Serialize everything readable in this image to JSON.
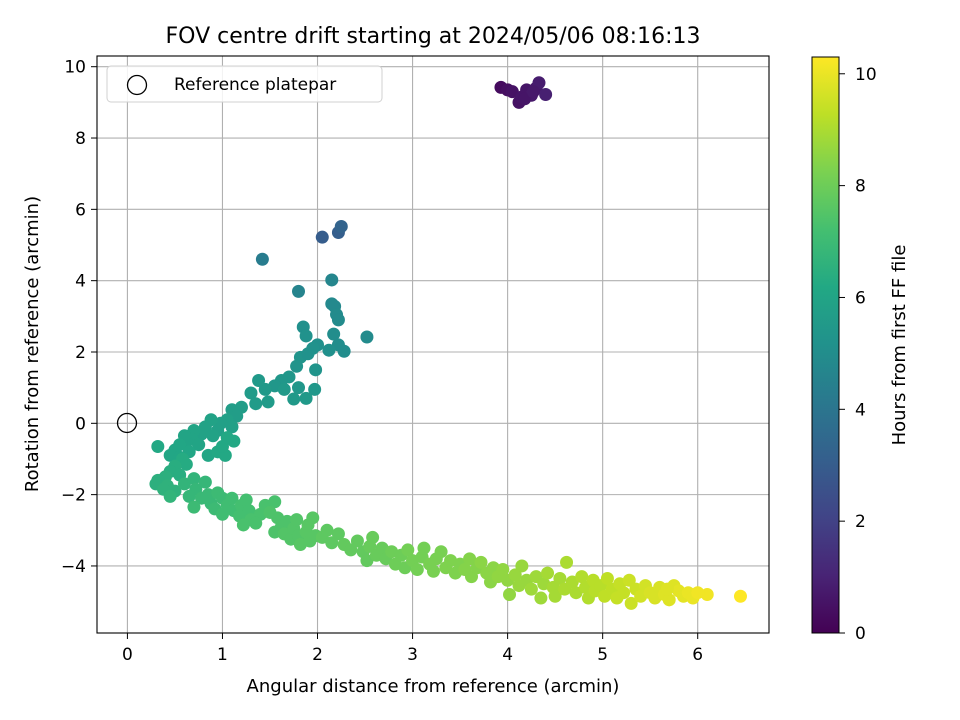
{
  "chart_data": {
    "type": "scatter",
    "title": "FOV centre drift starting at 2024/05/06 08:16:13",
    "xlabel": "Angular distance from reference (arcmin)",
    "ylabel": "Rotation from reference (arcmin)",
    "xlim": [
      -0.32,
      6.75
    ],
    "ylim": [
      -5.88,
      10.3
    ],
    "xticks": [
      0,
      1,
      2,
      3,
      4,
      5,
      6
    ],
    "yticks": [
      -4,
      -2,
      0,
      2,
      4,
      6,
      8,
      10
    ],
    "grid": true,
    "legend": {
      "placement": "top-left",
      "entries": [
        "Reference platepar"
      ]
    },
    "reference_point": {
      "x": 0,
      "y": 0,
      "label": "Reference platepar"
    },
    "colorbar": {
      "label": "Hours from first FF file",
      "colormap": "viridis",
      "range": [
        0,
        10.3
      ],
      "ticks": [
        0,
        2,
        4,
        6,
        8,
        10
      ]
    },
    "points": [
      [
        3.93,
        9.42,
        0.3
      ],
      [
        4.0,
        9.35,
        0.4
      ],
      [
        4.05,
        9.3,
        0.5
      ],
      [
        4.12,
        9.0,
        0.5
      ],
      [
        4.15,
        9.15,
        0.6
      ],
      [
        4.2,
        9.35,
        0.6
      ],
      [
        4.25,
        9.2,
        0.7
      ],
      [
        4.3,
        9.4,
        0.7
      ],
      [
        4.33,
        9.55,
        0.8
      ],
      [
        4.4,
        9.22,
        0.9
      ],
      [
        4.18,
        9.1,
        0.6
      ],
      [
        4.27,
        9.3,
        0.7
      ],
      [
        2.05,
        5.22,
        3.0
      ],
      [
        2.22,
        5.35,
        3.1
      ],
      [
        2.25,
        5.52,
        3.3
      ],
      [
        1.42,
        4.6,
        4.3
      ],
      [
        1.8,
        3.7,
        4.6
      ],
      [
        2.15,
        4.02,
        4.7
      ],
      [
        2.15,
        3.35,
        4.8
      ],
      [
        2.18,
        3.28,
        4.8
      ],
      [
        2.2,
        3.05,
        4.9
      ],
      [
        2.22,
        2.9,
        4.9
      ],
      [
        2.17,
        2.5,
        5.0
      ],
      [
        2.52,
        2.42,
        4.9
      ],
      [
        2.28,
        2.02,
        5.0
      ],
      [
        2.22,
        2.2,
        5.0
      ],
      [
        2.12,
        2.05,
        5.1
      ],
      [
        2.0,
        2.2,
        5.1
      ],
      [
        1.85,
        2.7,
        5.1
      ],
      [
        1.88,
        2.45,
        5.2
      ],
      [
        1.95,
        2.1,
        5.2
      ],
      [
        1.82,
        1.85,
        5.3
      ],
      [
        1.78,
        1.6,
        5.3
      ],
      [
        1.9,
        1.95,
        5.2
      ],
      [
        1.98,
        1.5,
        5.3
      ],
      [
        1.7,
        1.3,
        5.4
      ],
      [
        1.62,
        1.2,
        5.4
      ],
      [
        1.55,
        1.05,
        5.4
      ],
      [
        1.65,
        0.95,
        5.5
      ],
      [
        1.8,
        1.0,
        5.4
      ],
      [
        1.97,
        0.95,
        5.4
      ],
      [
        1.88,
        0.7,
        5.5
      ],
      [
        1.75,
        0.68,
        5.5
      ],
      [
        1.45,
        0.95,
        5.5
      ],
      [
        1.38,
        1.2,
        5.5
      ],
      [
        1.3,
        0.85,
        5.6
      ],
      [
        1.48,
        0.6,
        5.6
      ],
      [
        1.35,
        0.55,
        5.6
      ],
      [
        1.2,
        0.45,
        5.7
      ],
      [
        1.1,
        0.38,
        5.7
      ],
      [
        1.15,
        0.2,
        5.7
      ],
      [
        1.05,
        0.1,
        5.8
      ],
      [
        0.98,
        0.0,
        5.8
      ],
      [
        1.1,
        -0.1,
        5.8
      ],
      [
        0.95,
        -0.2,
        5.8
      ],
      [
        0.88,
        0.1,
        5.9
      ],
      [
        0.82,
        -0.1,
        5.9
      ],
      [
        0.9,
        -0.35,
        5.9
      ],
      [
        0.78,
        -0.3,
        5.9
      ],
      [
        0.7,
        -0.2,
        6.0
      ],
      [
        0.68,
        -0.45,
        6.0
      ],
      [
        0.75,
        -0.6,
        6.0
      ],
      [
        0.62,
        -0.5,
        6.0
      ],
      [
        0.6,
        -0.35,
        6.0
      ],
      [
        0.55,
        -0.6,
        6.1
      ],
      [
        0.5,
        -0.75,
        6.1
      ],
      [
        0.45,
        -0.9,
        6.1
      ],
      [
        0.55,
        -0.95,
        6.1
      ],
      [
        0.65,
        -0.8,
        6.1
      ],
      [
        0.85,
        -0.9,
        6.1
      ],
      [
        0.95,
        -0.8,
        6.2
      ],
      [
        1.03,
        -0.9,
        6.2
      ],
      [
        1.0,
        -0.65,
        6.2
      ],
      [
        1.12,
        -0.5,
        6.2
      ],
      [
        1.05,
        -0.4,
        6.2
      ],
      [
        0.32,
        -0.65,
        6.2
      ],
      [
        0.58,
        -1.0,
        6.3
      ],
      [
        0.62,
        -1.15,
        6.3
      ],
      [
        0.5,
        -1.2,
        6.4
      ],
      [
        0.45,
        -1.35,
        6.4
      ],
      [
        0.55,
        -1.45,
        6.4
      ],
      [
        0.4,
        -1.5,
        6.5
      ],
      [
        0.32,
        -1.6,
        6.5
      ],
      [
        0.3,
        -1.7,
        6.5
      ],
      [
        0.42,
        -1.75,
        6.6
      ],
      [
        0.38,
        -1.85,
        6.6
      ],
      [
        0.5,
        -1.9,
        6.6
      ],
      [
        0.45,
        -2.05,
        6.7
      ],
      [
        0.6,
        -1.7,
        6.7
      ],
      [
        0.7,
        -1.55,
        6.7
      ],
      [
        0.72,
        -1.85,
        6.8
      ],
      [
        0.65,
        -2.05,
        6.8
      ],
      [
        0.82,
        -1.65,
        6.8
      ],
      [
        0.85,
        -2.0,
        6.9
      ],
      [
        0.88,
        -2.25,
        6.9
      ],
      [
        0.78,
        -2.1,
        6.9
      ],
      [
        0.7,
        -2.35,
        7.0
      ],
      [
        0.95,
        -1.95,
        7.0
      ],
      [
        0.92,
        -2.4,
        7.0
      ],
      [
        1.0,
        -2.1,
        7.0
      ],
      [
        1.05,
        -2.3,
        7.1
      ],
      [
        1.1,
        -2.1,
        7.1
      ],
      [
        1.0,
        -2.55,
        7.1
      ],
      [
        1.12,
        -2.45,
        7.1
      ],
      [
        1.2,
        -2.3,
        7.2
      ],
      [
        1.18,
        -2.6,
        7.2
      ],
      [
        1.25,
        -2.15,
        7.2
      ],
      [
        1.28,
        -2.45,
        7.2
      ],
      [
        1.3,
        -2.7,
        7.3
      ],
      [
        1.22,
        -2.85,
        7.3
      ],
      [
        1.4,
        -2.55,
        7.3
      ],
      [
        1.35,
        -2.8,
        7.3
      ],
      [
        1.45,
        -2.3,
        7.3
      ],
      [
        1.55,
        -2.2,
        7.3
      ],
      [
        1.5,
        -2.5,
        7.4
      ],
      [
        1.58,
        -2.65,
        7.4
      ],
      [
        1.62,
        -2.9,
        7.4
      ],
      [
        1.68,
        -2.75,
        7.4
      ],
      [
        1.55,
        -3.05,
        7.4
      ],
      [
        1.65,
        -3.1,
        7.5
      ],
      [
        1.72,
        -3.25,
        7.5
      ],
      [
        1.75,
        -2.95,
        7.5
      ],
      [
        1.8,
        -3.15,
        7.5
      ],
      [
        1.82,
        -3.4,
        7.6
      ],
      [
        1.78,
        -2.7,
        7.5
      ],
      [
        1.88,
        -3.05,
        7.6
      ],
      [
        1.92,
        -3.3,
        7.6
      ],
      [
        1.9,
        -2.85,
        7.6
      ],
      [
        1.98,
        -3.15,
        7.6
      ],
      [
        1.95,
        -2.65,
        7.6
      ],
      [
        2.05,
        -3.2,
        7.7
      ],
      [
        2.1,
        -3.0,
        7.7
      ],
      [
        2.15,
        -3.35,
        7.7
      ],
      [
        2.22,
        -3.1,
        7.7
      ],
      [
        2.28,
        -3.4,
        7.8
      ],
      [
        2.35,
        -3.55,
        7.8
      ],
      [
        2.42,
        -3.3,
        7.8
      ],
      [
        2.48,
        -3.6,
        7.8
      ],
      [
        2.52,
        -3.85,
        7.8
      ],
      [
        2.55,
        -3.45,
        7.9
      ],
      [
        2.62,
        -3.7,
        7.9
      ],
      [
        2.58,
        -3.2,
        7.9
      ],
      [
        2.68,
        -3.5,
        7.9
      ],
      [
        2.72,
        -3.8,
        7.9
      ],
      [
        2.78,
        -3.6,
        8.0
      ],
      [
        2.82,
        -3.95,
        8.0
      ],
      [
        2.88,
        -3.7,
        8.0
      ],
      [
        2.92,
        -4.05,
        8.0
      ],
      [
        2.95,
        -3.55,
        8.1
      ],
      [
        3.0,
        -3.85,
        8.1
      ],
      [
        3.05,
        -4.1,
        8.1
      ],
      [
        3.1,
        -3.75,
        8.1
      ],
      [
        3.12,
        -3.5,
        8.1
      ],
      [
        3.18,
        -3.95,
        8.2
      ],
      [
        3.22,
        -4.15,
        8.2
      ],
      [
        3.25,
        -3.8,
        8.2
      ],
      [
        3.3,
        -3.6,
        8.2
      ],
      [
        3.35,
        -4.05,
        8.3
      ],
      [
        3.4,
        -3.85,
        8.3
      ],
      [
        3.45,
        -4.2,
        8.3
      ],
      [
        3.5,
        -3.95,
        8.3
      ],
      [
        3.55,
        -4.1,
        8.4
      ],
      [
        3.6,
        -3.8,
        8.4
      ],
      [
        3.62,
        -4.3,
        8.4
      ],
      [
        3.68,
        -4.05,
        8.4
      ],
      [
        3.72,
        -3.9,
        8.5
      ],
      [
        3.78,
        -4.2,
        8.5
      ],
      [
        3.82,
        -4.45,
        8.5
      ],
      [
        3.85,
        -4.05,
        8.5
      ],
      [
        3.9,
        -4.3,
        8.6
      ],
      [
        3.95,
        -4.1,
        8.6
      ],
      [
        4.0,
        -4.4,
        8.6
      ],
      [
        4.02,
        -4.8,
        8.6
      ],
      [
        4.08,
        -4.25,
        8.7
      ],
      [
        4.12,
        -4.55,
        8.7
      ],
      [
        4.15,
        -4.0,
        8.7
      ],
      [
        4.2,
        -4.4,
        8.7
      ],
      [
        4.25,
        -4.65,
        8.8
      ],
      [
        4.3,
        -4.3,
        8.8
      ],
      [
        4.35,
        -4.9,
        8.8
      ],
      [
        4.38,
        -4.5,
        8.8
      ],
      [
        4.42,
        -4.2,
        8.9
      ],
      [
        4.48,
        -4.6,
        8.9
      ],
      [
        4.5,
        -4.85,
        8.9
      ],
      [
        4.55,
        -4.35,
        8.9
      ],
      [
        4.6,
        -4.65,
        9.0
      ],
      [
        4.62,
        -3.9,
        9.0
      ],
      [
        4.68,
        -4.45,
        9.0
      ],
      [
        4.72,
        -4.75,
        9.0
      ],
      [
        4.78,
        -4.3,
        9.1
      ],
      [
        4.82,
        -4.6,
        9.1
      ],
      [
        4.85,
        -4.9,
        9.1
      ],
      [
        4.9,
        -4.4,
        9.2
      ],
      [
        4.92,
        -4.7,
        9.2
      ],
      [
        4.98,
        -4.55,
        9.2
      ],
      [
        5.02,
        -4.85,
        9.3
      ],
      [
        5.05,
        -4.35,
        9.3
      ],
      [
        5.1,
        -4.65,
        9.3
      ],
      [
        5.15,
        -4.9,
        9.4
      ],
      [
        5.18,
        -4.5,
        9.4
      ],
      [
        5.22,
        -4.75,
        9.4
      ],
      [
        5.28,
        -4.4,
        9.5
      ],
      [
        5.3,
        -5.05,
        9.5
      ],
      [
        5.35,
        -4.65,
        9.5
      ],
      [
        5.4,
        -4.85,
        9.6
      ],
      [
        5.45,
        -4.55,
        9.6
      ],
      [
        5.5,
        -4.75,
        9.7
      ],
      [
        5.55,
        -4.9,
        9.7
      ],
      [
        5.6,
        -4.6,
        9.7
      ],
      [
        5.65,
        -4.8,
        9.8
      ],
      [
        5.7,
        -4.95,
        9.8
      ],
      [
        5.75,
        -4.55,
        9.8
      ],
      [
        5.8,
        -4.7,
        9.9
      ],
      [
        5.85,
        -4.85,
        9.9
      ],
      [
        5.9,
        -4.75,
        10.0
      ],
      [
        5.95,
        -4.9,
        10.0
      ],
      [
        6.1,
        -4.8,
        10.1
      ],
      [
        6.45,
        -4.85,
        10.3
      ],
      [
        6.0,
        -4.75,
        10.1
      ],
      [
        5.68,
        -4.65,
        9.8
      ]
    ]
  }
}
